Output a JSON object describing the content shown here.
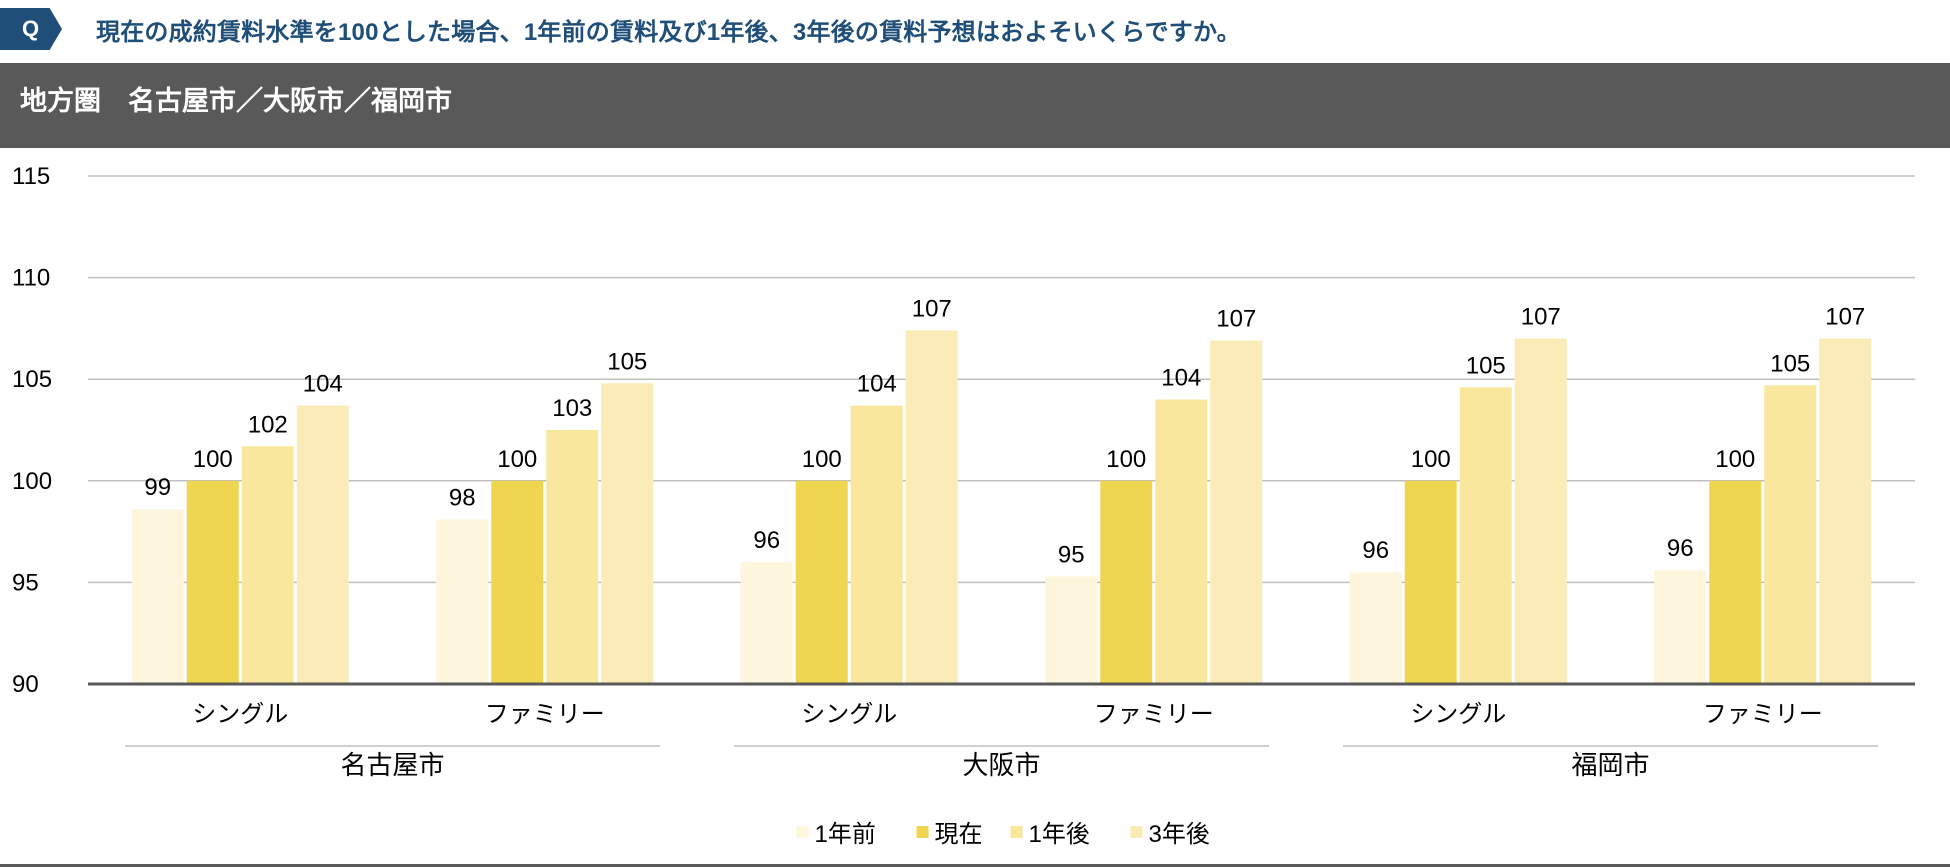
{
  "question": {
    "badge": "Q",
    "text": "現在の成約賃料水準を100とした場合、1年前の賃料及び1年後、3年後の賃料予想はおよそいくらですか。"
  },
  "region_title": "地方圏　名古屋市／大阪市／福岡市",
  "colors": {
    "badge": "#1f4e79",
    "question_text": "#1f4e79",
    "band": "#595959",
    "series": [
      "#fdf6dd",
      "#f0d550",
      "#fae79e",
      "#fbecb7"
    ],
    "grid": "#bfbfbf",
    "axis": "#595959"
  },
  "chart_data": {
    "type": "bar",
    "ylim": [
      90,
      115
    ],
    "yticks": [
      90,
      95,
      100,
      105,
      110,
      115
    ],
    "grid": true,
    "legend_position": "bottom",
    "groups": [
      {
        "name": "名古屋市",
        "categories": [
          "シングル",
          "ファミリー"
        ]
      },
      {
        "name": "大阪市",
        "categories": [
          "シングル",
          "ファミリー"
        ]
      },
      {
        "name": "福岡市",
        "categories": [
          "シングル",
          "ファミリー"
        ]
      }
    ],
    "series": [
      {
        "name": "1年前",
        "values": [
          98.6,
          98.1,
          96.0,
          95.3,
          95.5,
          95.6
        ],
        "labels": [
          "99",
          "98",
          "96",
          "95",
          "96",
          "96"
        ]
      },
      {
        "name": "現在",
        "values": [
          100,
          100,
          100,
          100,
          100,
          100
        ],
        "labels": [
          "100",
          "100",
          "100",
          "100",
          "100",
          "100"
        ]
      },
      {
        "name": "1年後",
        "values": [
          101.7,
          102.5,
          103.7,
          104.0,
          104.6,
          104.7
        ],
        "labels": [
          "102",
          "103",
          "104",
          "104",
          "105",
          "105"
        ]
      },
      {
        "name": "3年後",
        "values": [
          103.7,
          104.8,
          107.4,
          106.9,
          107.0,
          107.0
        ],
        "labels": [
          "104",
          "105",
          "107",
          "107",
          "107",
          "107"
        ]
      }
    ]
  }
}
